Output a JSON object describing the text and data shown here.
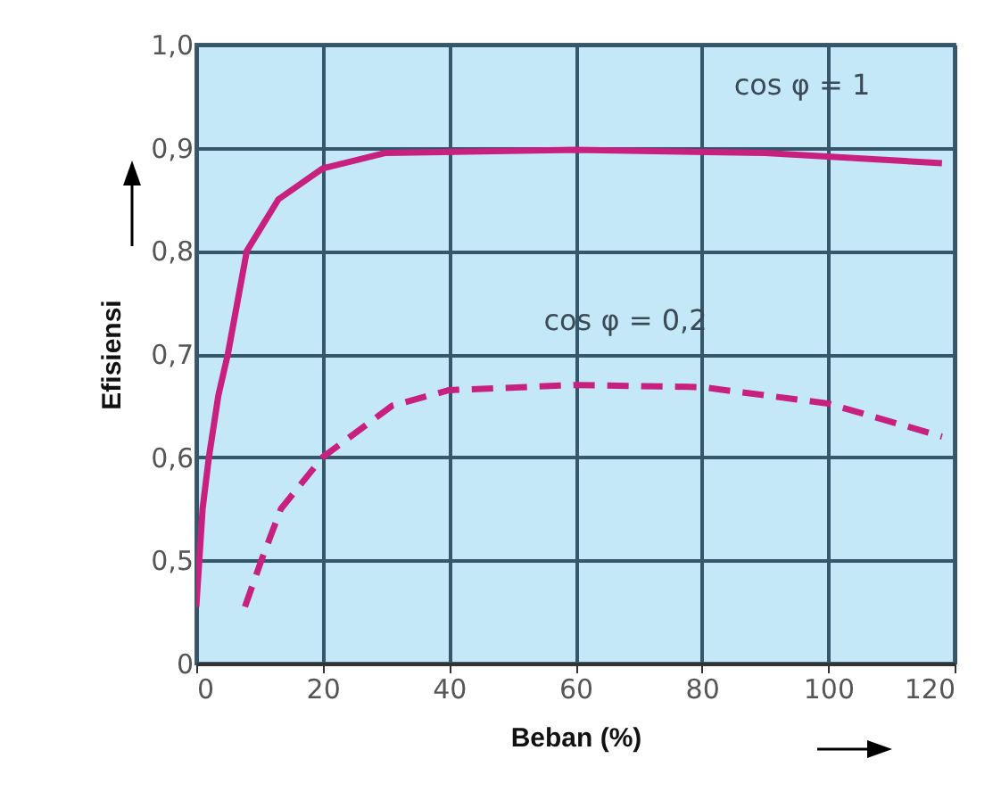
{
  "chart_data": {
    "type": "line",
    "xlabel": "Beban (%)",
    "ylabel": "Efisiensi",
    "xlim": [
      0,
      120
    ],
    "xticks": [
      0,
      20,
      40,
      60,
      80,
      100,
      120
    ],
    "ylim": [
      0.4,
      1.0
    ],
    "yticks": [
      {
        "value": 0.4,
        "label": "0"
      },
      {
        "value": 0.5,
        "label": "0,5"
      },
      {
        "value": 0.6,
        "label": "0,6"
      },
      {
        "value": 0.7,
        "label": "0,7"
      },
      {
        "value": 0.8,
        "label": "0,8"
      },
      {
        "value": 0.9,
        "label": "0,9"
      },
      {
        "value": 1.0,
        "label": "1,0"
      }
    ],
    "grid": true,
    "series": [
      {
        "name": "cos φ = 1",
        "color": "#c8207e",
        "line_style": "solid",
        "x": [
          0,
          1,
          2,
          3.5,
          5,
          8,
          13,
          20,
          30,
          60,
          90,
          118
        ],
        "values": [
          0.455,
          0.55,
          0.6,
          0.66,
          0.7,
          0.8,
          0.85,
          0.88,
          0.895,
          0.898,
          0.895,
          0.885
        ]
      },
      {
        "name": "cos φ = 0,2",
        "color": "#c8207e",
        "line_style": "dashed",
        "x": [
          7.7,
          10.3,
          13.4,
          20,
          31,
          40,
          60,
          80,
          100,
          118
        ],
        "values": [
          0.455,
          0.5,
          0.55,
          0.6,
          0.65,
          0.665,
          0.67,
          0.668,
          0.652,
          0.62
        ]
      }
    ]
  }
}
